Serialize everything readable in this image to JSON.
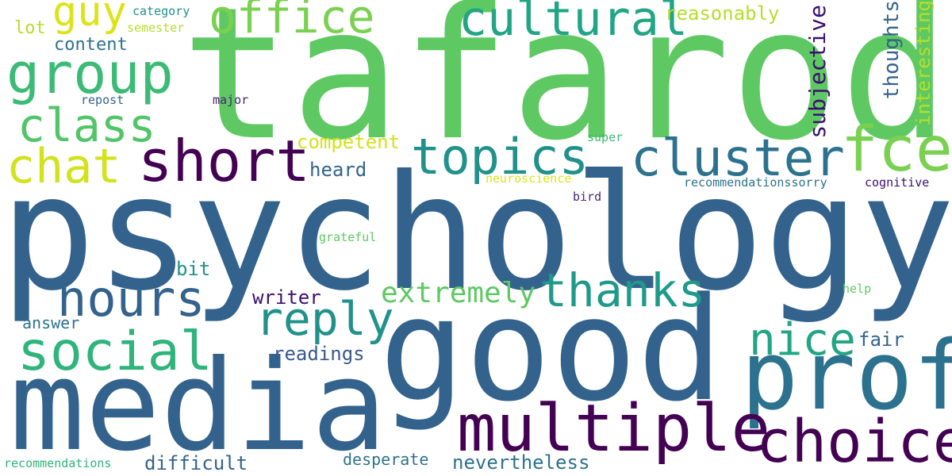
{
  "words": [
    {
      "text": "tafarodi",
      "color": "#5ec962"
    },
    {
      "text": "psychology",
      "color": "#33638d"
    },
    {
      "text": "good",
      "color": "#33638d"
    },
    {
      "text": "media",
      "color": "#33638d"
    },
    {
      "text": "prof",
      "color": "#2c728e"
    },
    {
      "text": "multiple",
      "color": "#440154"
    },
    {
      "text": "choice",
      "color": "#440154"
    },
    {
      "text": "short",
      "color": "#440154"
    },
    {
      "text": "cluster",
      "color": "#2c728e"
    },
    {
      "text": "group",
      "color": "#3bbb75"
    },
    {
      "text": "office",
      "color": "#7ad151"
    },
    {
      "text": "cultural",
      "color": "#21a585"
    },
    {
      "text": "topics",
      "color": "#21918c"
    },
    {
      "text": "fce",
      "color": "#7ad151"
    },
    {
      "text": "social",
      "color": "#2fb47c"
    },
    {
      "text": "reply",
      "color": "#21918c"
    },
    {
      "text": "thanks",
      "color": "#1f9a8a"
    },
    {
      "text": "hours",
      "color": "#33638d"
    },
    {
      "text": "class",
      "color": "#52c569"
    },
    {
      "text": "chat",
      "color": "#d2e21b"
    },
    {
      "text": "guy",
      "color": "#dde318"
    },
    {
      "text": "nice",
      "color": "#21a585"
    },
    {
      "text": "extremely",
      "color": "#5ec962"
    },
    {
      "text": "subjective",
      "color": "#3b0f70"
    },
    {
      "text": "thoughts",
      "color": "#33638d"
    },
    {
      "text": "interesting",
      "color": "#b5de2b"
    },
    {
      "text": "content",
      "color": "#2c728e"
    },
    {
      "text": "reasonably",
      "color": "#b5de2b"
    },
    {
      "text": "competent",
      "color": "#d2e21b"
    },
    {
      "text": "heard",
      "color": "#33638d"
    },
    {
      "text": "writer",
      "color": "#3b0f70"
    },
    {
      "text": "readings",
      "color": "#38598c"
    },
    {
      "text": "difficult",
      "color": "#33638d"
    },
    {
      "text": "nevertheless",
      "color": "#2c728e"
    },
    {
      "text": "desperate",
      "color": "#2c728e"
    },
    {
      "text": "answer",
      "color": "#2c728e"
    },
    {
      "text": "bit",
      "color": "#21918c"
    },
    {
      "text": "fair",
      "color": "#33638d"
    },
    {
      "text": "lot",
      "color": "#b5de2b"
    },
    {
      "text": "category",
      "color": "#21918c"
    },
    {
      "text": "semester",
      "color": "#b5de2b"
    },
    {
      "text": "repost",
      "color": "#33638d"
    },
    {
      "text": "major",
      "color": "#482475"
    },
    {
      "text": "super",
      "color": "#3bbb75"
    },
    {
      "text": "neuroscience",
      "color": "#dde318"
    },
    {
      "text": "bird",
      "color": "#482475"
    },
    {
      "text": "recommendationssorry",
      "color": "#2c728e"
    },
    {
      "text": "cognitive",
      "color": "#3b0f70"
    },
    {
      "text": "grateful",
      "color": "#5ec962"
    },
    {
      "text": "help",
      "color": "#5ec962"
    },
    {
      "text": "recommendations",
      "color": "#2fb47c"
    }
  ]
}
